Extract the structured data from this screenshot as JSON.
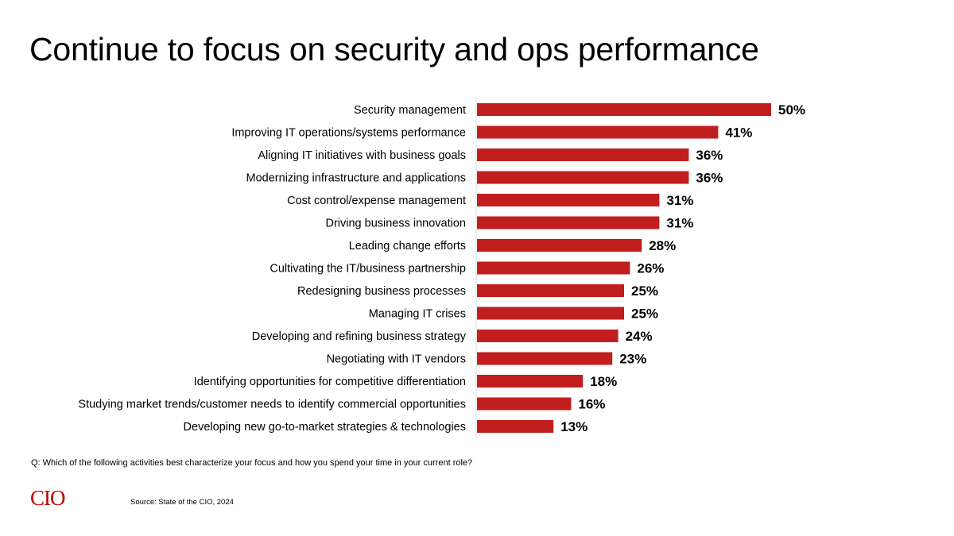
{
  "slide": {
    "title": "Continue to focus on security and ops performance",
    "question": "Q: Which of the following activities best characterize your focus and how you spend your time in your current role?",
    "source": "Source: State of the CIO, 2024",
    "logo_text": "CIO"
  },
  "colors": {
    "bar": "#c11f1f",
    "axis": "#d9d9d9",
    "logo": "#c00000"
  },
  "chart_data": {
    "type": "bar",
    "orientation": "horizontal",
    "title": "Continue to focus on security and ops performance",
    "xlabel": "",
    "ylabel": "",
    "value_suffix": "%",
    "xlim": [
      0,
      50
    ],
    "grid": false,
    "legend": "none",
    "categories": [
      "Security management",
      "Improving IT operations/systems performance",
      "Aligning IT initiatives with business goals",
      "Modernizing infrastructure and applications",
      "Cost control/expense management",
      "Driving business innovation",
      "Leading change efforts",
      "Cultivating the IT/business partnership",
      "Redesigning business processes",
      "Managing IT crises",
      "Developing and refining business strategy",
      "Negotiating with IT vendors",
      "Identifying opportunities for competitive differentiation",
      "Studying market trends/customer needs to identify commercial opportunities",
      "Developing new go-to-market strategies & technologies"
    ],
    "values": [
      50,
      41,
      36,
      36,
      31,
      31,
      28,
      26,
      25,
      25,
      24,
      23,
      18,
      16,
      13
    ],
    "value_labels": [
      "50%",
      "41%",
      "36%",
      "36%",
      "31%",
      "31%",
      "28%",
      "26%",
      "25%",
      "25%",
      "24%",
      "23%",
      "18%",
      "16%",
      "13%"
    ]
  }
}
